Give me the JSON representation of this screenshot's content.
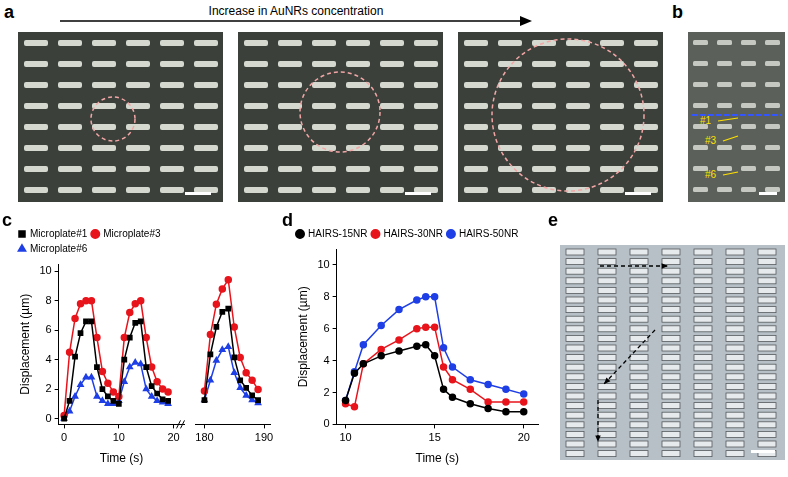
{
  "figure": {
    "panels": [
      {
        "label": "a",
        "caption": "Increase in AuNRs concentration"
      },
      {
        "label": "b",
        "markers": [
          "#1",
          "#3",
          "#6"
        ]
      },
      {
        "label": "c"
      },
      {
        "label": "d"
      },
      {
        "label": "e"
      }
    ]
  },
  "chart_data": [
    {
      "type": "line",
      "xlabel": "Time (s)",
      "ylabel": "Displacement (µm)",
      "x": [
        0,
        1,
        2,
        3,
        4,
        5,
        6,
        7,
        8,
        9,
        10,
        11,
        12,
        13,
        14,
        15,
        16,
        17,
        18,
        19
      ],
      "series": [
        {
          "name": "Microplate#1",
          "color": "#000000",
          "marker": "square",
          "values": [
            0,
            1.2,
            4.2,
            5.8,
            6.6,
            6.6,
            3.5,
            2.0,
            1.5,
            1.2,
            1.0,
            4.0,
            5.5,
            6.5,
            6.6,
            3.5,
            2.2,
            1.7,
            1.3,
            1.2
          ]
        },
        {
          "name": "Microplate#3",
          "color": "#e8141c",
          "marker": "circle",
          "values": [
            0.2,
            4.5,
            6.8,
            7.8,
            8.0,
            8.0,
            5.5,
            3.2,
            2.4,
            1.8,
            1.5,
            5.5,
            7.2,
            7.8,
            8.0,
            5.5,
            3.5,
            2.5,
            2.0,
            1.8
          ]
        },
        {
          "name": "Microplate#6",
          "color": "#1f3fe6",
          "marker": "triangle",
          "values": [
            0,
            0.5,
            1.5,
            2.3,
            2.8,
            2.8,
            1.5,
            1.2,
            1.0,
            1.0,
            1.2,
            2.5,
            3.5,
            3.8,
            3.7,
            2.0,
            1.5,
            1.2,
            1.1,
            1.0
          ]
        }
      ],
      "xlim": [
        -1,
        22
      ],
      "xticks": [
        0,
        10,
        20
      ],
      "ylim": [
        -0.4,
        10.5
      ],
      "yticks": [
        0,
        2,
        4,
        6,
        8,
        10
      ],
      "grid": false,
      "legend": "top-left"
    },
    {
      "type": "line",
      "x": [
        180,
        181,
        182,
        183,
        184,
        185,
        186,
        187,
        188,
        189
      ],
      "series": [
        {
          "color": "#000000",
          "marker": "square",
          "values": [
            1.2,
            4.2,
            6.0,
            7.0,
            7.2,
            4.0,
            2.5,
            2.0,
            1.5,
            1.2
          ]
        },
        {
          "color": "#e8141c",
          "marker": "circle",
          "values": [
            1.8,
            5.5,
            7.5,
            8.5,
            9.1,
            6.0,
            4.0,
            3.0,
            2.5,
            1.9
          ]
        },
        {
          "color": "#1f3fe6",
          "marker": "triangle",
          "values": [
            1.2,
            2.5,
            3.8,
            4.5,
            4.7,
            3.0,
            2.0,
            1.5,
            1.2,
            1.0
          ]
        }
      ],
      "xlim": [
        178.5,
        191
      ],
      "xticks": [
        180,
        190
      ],
      "ylim": [
        -0.4,
        10.5
      ],
      "yticks": [
        0,
        2,
        4,
        6,
        8,
        10
      ],
      "grid": false,
      "tick_labels": "x"
    },
    {
      "type": "line",
      "xlabel": "Time (s)",
      "ylabel": "Displacement (µm)",
      "x": [
        10,
        10.5,
        11,
        12,
        13,
        14,
        14.5,
        15,
        15.5,
        16,
        17,
        18,
        19,
        20
      ],
      "series": [
        {
          "name": "HAIRS-15NR",
          "color": "#000000",
          "marker": "circle",
          "values": [
            1.5,
            3.2,
            3.8,
            4.3,
            4.6,
            4.9,
            5.0,
            4.3,
            2.2,
            1.7,
            1.3,
            1.0,
            0.8,
            0.8
          ]
        },
        {
          "name": "HAIRS-30NR",
          "color": "#e8141c",
          "marker": "circle",
          "values": [
            1.3,
            1.1,
            3.8,
            4.7,
            5.3,
            6.0,
            6.1,
            6.1,
            3.6,
            2.8,
            2.2,
            1.4,
            1.4,
            1.4
          ]
        },
        {
          "name": "HAIRS-50NR",
          "color": "#1f3fe6",
          "marker": "circle",
          "values": [
            1.5,
            3.3,
            5.0,
            6.2,
            7.2,
            7.8,
            8.0,
            8.0,
            4.8,
            3.6,
            2.8,
            2.5,
            2.2,
            1.9
          ]
        }
      ],
      "xlim": [
        9.5,
        20.8
      ],
      "xticks": [
        10,
        15,
        20
      ],
      "ylim": [
        0,
        11
      ],
      "yticks": [
        0,
        2,
        4,
        6,
        8,
        10
      ],
      "grid": false,
      "legend": "top-left"
    }
  ]
}
